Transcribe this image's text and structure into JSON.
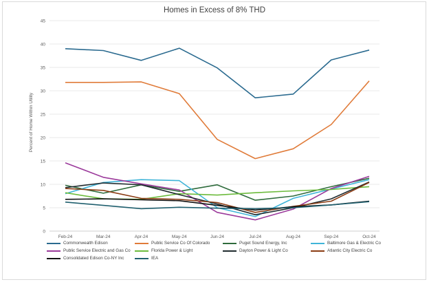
{
  "chart_data": {
    "type": "line",
    "title": "Homes in Excess of 8% THD",
    "ylabel": "Percent of Home Within Utility",
    "xlabel": "",
    "ylim": [
      0,
      45
    ],
    "yticks": [
      0,
      5,
      10,
      15,
      20,
      25,
      30,
      35,
      40,
      45
    ],
    "grid": true,
    "legend_position": "bottom",
    "x": [
      "Feb-24",
      "Mar-24",
      "Apr-24",
      "May-24",
      "Jun-24",
      "Jul-24",
      "Aug-24",
      "Sep-24",
      "Oct-24"
    ],
    "series": [
      {
        "name": "Commonwealth Edison",
        "color": "#2a6a8f",
        "values": [
          39.0,
          38.6,
          36.5,
          39.1,
          34.9,
          28.5,
          29.3,
          36.6,
          38.7
        ]
      },
      {
        "name": "Public Service Co Of Colorado",
        "color": "#e07b39",
        "values": [
          31.8,
          31.8,
          31.9,
          29.4,
          19.6,
          15.5,
          17.6,
          22.8,
          32.1
        ]
      },
      {
        "name": "Puget Sound Energy, Inc",
        "color": "#2e6b3c",
        "values": [
          9.8,
          8.1,
          9.9,
          8.5,
          9.9,
          6.6,
          7.5,
          9.5,
          11.3
        ]
      },
      {
        "name": "Baltimore Gas & Electric Co",
        "color": "#3fb4d8",
        "values": [
          8.0,
          10.4,
          11.0,
          10.8,
          5.0,
          3.1,
          7.0,
          9.0,
          11.0
        ]
      },
      {
        "name": "Public Service Electric and Gas Co",
        "color": "#9b3a9b",
        "values": [
          14.6,
          11.5,
          10.1,
          8.8,
          4.0,
          2.4,
          4.7,
          9.1,
          11.7
        ]
      },
      {
        "name": "Florida Power & Light",
        "color": "#6cbb3c",
        "values": [
          8.2,
          6.9,
          6.8,
          8.0,
          7.7,
          8.2,
          8.6,
          8.9,
          9.5
        ]
      },
      {
        "name": "Dayton Power & Light Co",
        "color": "#1f2a2e",
        "values": [
          9.3,
          10.3,
          9.9,
          7.8,
          5.8,
          3.5,
          5.0,
          6.9,
          10.5
        ]
      },
      {
        "name": "Atlantic City Electric Co",
        "color": "#8a3b12",
        "values": [
          9.1,
          8.7,
          7.0,
          6.8,
          6.1,
          4.0,
          5.3,
          6.4,
          10.4
        ]
      },
      {
        "name": "Consolidated Edison Co-NY Inc",
        "color": "#111111",
        "values": [
          6.8,
          6.9,
          6.7,
          6.5,
          5.5,
          4.5,
          5.2,
          5.6,
          6.4
        ]
      },
      {
        "name": "IEA",
        "color": "#1f5f6e",
        "values": [
          6.2,
          5.5,
          4.8,
          5.1,
          4.9,
          4.8,
          5.0,
          5.6,
          6.3
        ]
      }
    ]
  }
}
